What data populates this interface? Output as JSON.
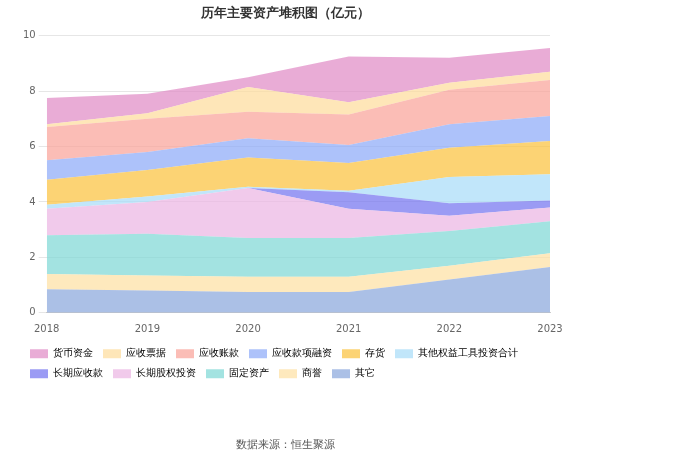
{
  "chart_data": {
    "type": "area",
    "title": "历年主要资产堆积图（亿元）",
    "source": "数据来源：恒生聚源",
    "categories": [
      "2018",
      "2019",
      "2020",
      "2021",
      "2022",
      "2023"
    ],
    "stacked": true,
    "grid": true,
    "legend": "bottom",
    "ylim": [
      0,
      10
    ],
    "yticks": [
      0,
      2,
      4,
      6,
      8,
      10
    ],
    "series": [
      {
        "name": "货币资金",
        "color": "#e08cc6",
        "values": [
          0.95,
          0.7,
          0.35,
          1.65,
          0.9,
          0.85
        ]
      },
      {
        "name": "应收票据",
        "color": "#fedc9c",
        "values": [
          0.1,
          0.2,
          0.9,
          0.45,
          0.25,
          0.3
        ]
      },
      {
        "name": "应收账款",
        "color": "#f9a49a",
        "values": [
          1.2,
          1.2,
          0.95,
          1.1,
          1.25,
          1.3
        ]
      },
      {
        "name": "应收款项融资",
        "color": "#8eaaf8",
        "values": [
          0.7,
          0.65,
          0.7,
          0.65,
          0.85,
          0.9
        ]
      },
      {
        "name": "存货",
        "color": "#fbc23e",
        "values": [
          0.9,
          0.95,
          1.05,
          1.0,
          1.05,
          1.2
        ]
      },
      {
        "name": "其他权益工具投资合计",
        "color": "#a9ddf8",
        "values": [
          0.15,
          0.2,
          0.05,
          0.05,
          0.95,
          0.95
        ]
      },
      {
        "name": "长期应收款",
        "color": "#7475f0",
        "values": [
          0,
          0,
          0,
          0.6,
          0.45,
          0.25
        ]
      },
      {
        "name": "长期股权投资",
        "color": "#ebb6e3",
        "values": [
          0.95,
          1.15,
          1.8,
          1.05,
          0.55,
          0.5
        ]
      },
      {
        "name": "固定资产",
        "color": "#7fd8d6",
        "values": [
          1.4,
          1.5,
          1.4,
          1.4,
          1.25,
          1.15
        ]
      },
      {
        "name": "商誉",
        "color": "#fde0a4",
        "values": [
          0.55,
          0.55,
          0.55,
          0.55,
          0.5,
          0.5
        ]
      },
      {
        "name": "其它",
        "color": "#8aa8dc",
        "values": [
          0.85,
          0.8,
          0.75,
          0.75,
          1.2,
          1.65
        ]
      }
    ]
  }
}
